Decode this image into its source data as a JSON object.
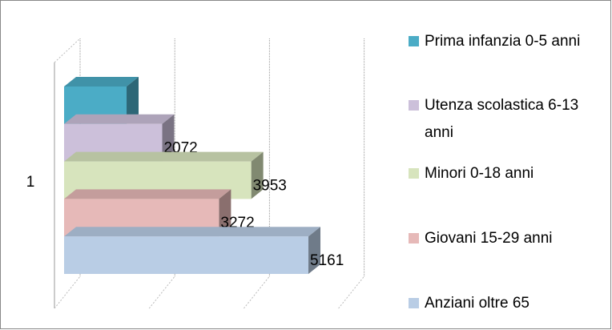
{
  "chart_data": {
    "type": "bar3d_horizontal",
    "categories": [
      "1"
    ],
    "series": [
      {
        "name": "Prima infanzia 0-5 anni",
        "color": "#4bacc6",
        "values": [
          1320
        ],
        "data_label": false
      },
      {
        "name": "Utenza scolastica 6-13 anni",
        "color": "#ccc0da",
        "values": [
          2072
        ]
      },
      {
        "name": "Minori 0-18 anni",
        "color": "#d7e4bd",
        "values": [
          3953
        ]
      },
      {
        "name": "Giovani 15-29 anni",
        "color": "#e6b9b8",
        "values": [
          3272
        ]
      },
      {
        "name": "Anziani oltre 65",
        "color": "#b9cde5",
        "values": [
          5161
        ]
      }
    ],
    "xlim": [
      0,
      6000
    ],
    "xticks": [
      0,
      2000,
      4000,
      6000
    ],
    "grid": true,
    "legend": "right"
  }
}
